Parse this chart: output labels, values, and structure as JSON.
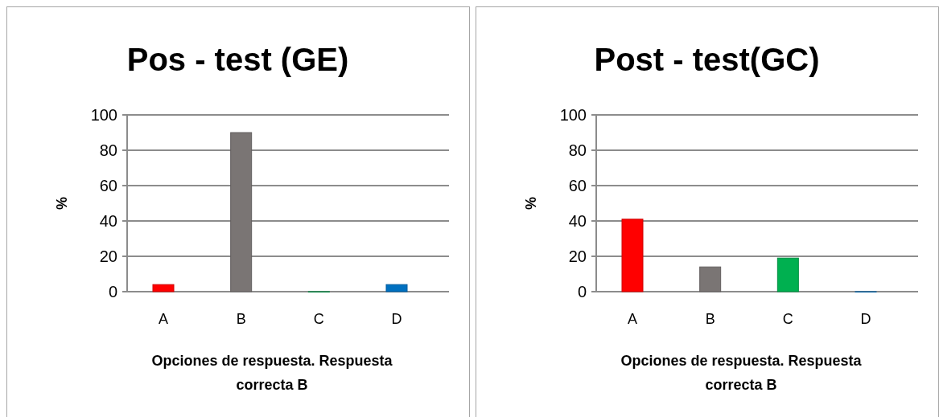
{
  "chart_data": [
    {
      "type": "bar",
      "title": "Pos - test (GE)",
      "xlabel": "Opciones de respuesta. Respuesta correcta B",
      "ylabel": "%",
      "categories": [
        "A",
        "B",
        "C",
        "D"
      ],
      "values": [
        4,
        90,
        0,
        4
      ],
      "colors": [
        "#ff0000",
        "#7a7574",
        "#00a04a",
        "#0070c0"
      ],
      "ylim": [
        0,
        100
      ],
      "yticks": [
        0,
        20,
        40,
        60,
        80,
        100
      ],
      "grid": "y"
    },
    {
      "type": "bar",
      "title": "Post - test(GC)",
      "xlabel": "Opciones de respuesta. Respuesta correcta B",
      "ylabel": "%",
      "categories": [
        "A",
        "B",
        "C",
        "D"
      ],
      "values": [
        41,
        14,
        19,
        0
      ],
      "colors": [
        "#ff0000",
        "#7a7574",
        "#00b050",
        "#0070c0"
      ],
      "ylim": [
        0,
        100
      ],
      "yticks": [
        0,
        20,
        40,
        60,
        80,
        100
      ],
      "grid": "y"
    }
  ]
}
